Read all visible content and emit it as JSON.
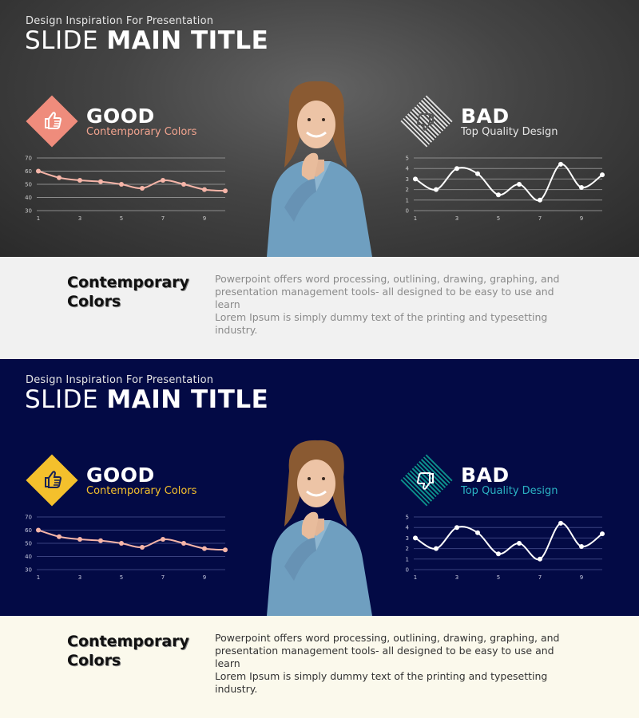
{
  "slides": [
    {
      "subtitle": "Design Inspiration For Presentation",
      "title_light": "SLIDE",
      "title_bold": "MAIN TITLE",
      "good": {
        "word": "GOOD",
        "caption": "Contemporary Colors",
        "icon": "thumbs-up-icon"
      },
      "bad": {
        "word": "BAD",
        "caption": "Top Quality Design",
        "icon": "thumbs-down-icon"
      },
      "band": {
        "heading_line1": "Contemporary",
        "heading_line2": "Colors",
        "paragraph1": "Powerpoint offers word processing, outlining, drawing, graphing, and presentation management tools- all designed to be easy to use and learn",
        "paragraph2": "Lorem Ipsum is simply dummy text of the printing and typesetting industry."
      },
      "colors": {
        "good_badge": "#ef8c7c",
        "good_icon": "#ffffff",
        "good_caption": "#f2a48f",
        "good_line": "#f6b5a8",
        "bad_badge": "#dddddd",
        "bad_icon": "#555555",
        "bad_caption": "#e6e6e6",
        "grid": "#8c8c8c",
        "tick": "#cccccc",
        "bad_line": "#ffffff"
      }
    },
    {
      "subtitle": "Design Inspiration For Presentation",
      "title_light": "SLIDE",
      "title_bold": "MAIN TITLE",
      "good": {
        "word": "GOOD",
        "caption": "Contemporary Colors",
        "icon": "thumbs-up-icon"
      },
      "bad": {
        "word": "BAD",
        "caption": "Top Quality Design",
        "icon": "thumbs-down-icon"
      },
      "band": {
        "heading_line1": "Contemporary",
        "heading_line2": "Colors",
        "paragraph1": "Powerpoint offers word processing, outlining, drawing, graphing, and presentation management tools- all designed to be easy to use and learn",
        "paragraph2": "Lorem Ipsum is simply dummy text of the printing and typesetting industry."
      },
      "colors": {
        "good_badge": "#f4c02c",
        "good_icon": "#1a2353",
        "good_caption": "#f4c02c",
        "good_line": "#f6b5a8",
        "bad_badge": "#0c8c8c",
        "bad_icon": "#ffffff",
        "bad_caption": "#2bb3c3",
        "grid": "#3a4280",
        "tick": "#c8cbe0",
        "bad_line": "#ffffff"
      }
    }
  ],
  "chart_data": [
    {
      "type": "line",
      "x": [
        1,
        2,
        3,
        4,
        5,
        6,
        7,
        8,
        9,
        10
      ],
      "y": [
        60,
        55,
        53,
        52,
        50,
        47,
        53,
        50,
        46,
        45
      ],
      "ylim": [
        30,
        70
      ],
      "yticks": [
        "30",
        "40",
        "50",
        "60",
        "70"
      ],
      "xticks": [
        "1",
        "3",
        "5",
        "7",
        "9"
      ],
      "smooth": true,
      "grid": true
    },
    {
      "type": "line",
      "x": [
        1,
        2,
        3,
        4,
        5,
        6,
        7,
        8,
        9,
        10
      ],
      "y": [
        3,
        2,
        4,
        3.5,
        1.5,
        2.5,
        1,
        4.4,
        2.2,
        3.4
      ],
      "ylim": [
        0,
        5
      ],
      "yticks": [
        "0",
        "1",
        "2",
        "3",
        "4",
        "5"
      ],
      "xticks": [
        "1",
        "3",
        "5",
        "7",
        "9"
      ],
      "smooth": true,
      "grid": true
    }
  ]
}
